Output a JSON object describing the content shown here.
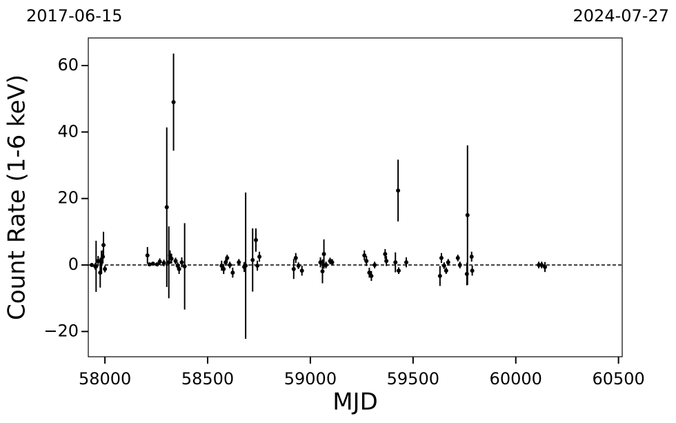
{
  "chart_data": {
    "type": "scatter",
    "x_label": "MJD",
    "y_label": "Count Rate (1-6 keV)",
    "color": "#000000",
    "xlim": [
      57919,
      60518
    ],
    "ylim": [
      -27.6,
      68.3
    ],
    "xticks": [
      58000,
      58500,
      59000,
      59500,
      60000,
      60500
    ],
    "yticks": [
      {
        "value": -20,
        "label": "−20"
      },
      0,
      20,
      40,
      60
    ],
    "x2ticks": [
      {
        "value": 57919,
        "label": "2017-06-15"
      },
      {
        "value": 60518,
        "label": "2024-07-27"
      }
    ],
    "hline": 0,
    "x": [
      57936,
      57953,
      57957,
      57967,
      57977,
      57983,
      57990,
      57993,
      58000,
      58207,
      58217,
      58234,
      58254,
      58267,
      58287,
      58301,
      58311,
      58317,
      58324,
      58334,
      58344,
      58354,
      58361,
      58374,
      58388,
      58568,
      58578,
      58588,
      58595,
      58608,
      58622,
      58652,
      58678,
      58685,
      58719,
      58735,
      58742,
      58752,
      58919,
      58929,
      58942,
      58959,
      59049,
      59059,
      59066,
      59076,
      59096,
      59106,
      59263,
      59273,
      59287,
      59297,
      59313,
      59364,
      59370,
      59414,
      59427,
      59430,
      59467,
      59631,
      59638,
      59651,
      59661,
      59671,
      59718,
      59728,
      59762,
      59765,
      59785,
      59788,
      60112,
      60126,
      60142
    ],
    "values": [
      0,
      -0.4,
      -0.4,
      1.2,
      -2.3,
      0.8,
      2.5,
      6,
      -1.2,
      2.9,
      0.2,
      0.4,
      0.2,
      1,
      0.6,
      17.4,
      0.8,
      2.9,
      1.9,
      49,
      1.2,
      -0.2,
      -1.2,
      0.8,
      -0.4,
      -0.2,
      -1.2,
      0.8,
      2.1,
      0,
      -2.3,
      0.8,
      -0.6,
      -0.2,
      1.5,
      7.5,
      -0.2,
      2.5,
      -1.2,
      2.1,
      -0.2,
      -1.7,
      0.8,
      -1.9,
      3.3,
      0,
      1.2,
      0.8,
      2.9,
      1.2,
      -2.3,
      -3.3,
      0,
      3.3,
      1.2,
      0.8,
      22.4,
      -1.7,
      0.8,
      -3.3,
      2.1,
      -0.2,
      -1.7,
      0.8,
      2.1,
      0,
      -2.7,
      15,
      2.5,
      -1.7,
      0,
      0,
      -0.6
    ],
    "errors": [
      0.5,
      1,
      7.7,
      1.5,
      4.5,
      3.5,
      2,
      4,
      1,
      2.5,
      0.5,
      0.5,
      0.5,
      1,
      1,
      24,
      10.8,
      1.5,
      1.5,
      14.6,
      1,
      1,
      1.5,
      1.5,
      13,
      1.5,
      1.5,
      1,
      1,
      1,
      1.5,
      1,
      1.5,
      22,
      9.5,
      3.5,
      1.5,
      1.5,
      3,
      1.5,
      1,
      1.5,
      1.5,
      3.6,
      4.4,
      1,
      1,
      1,
      1.5,
      1.5,
      1.5,
      1.5,
      1,
      1.5,
      1.5,
      3,
      9.3,
      1,
      1.5,
      3,
      1.5,
      1,
      1,
      1,
      1,
      1,
      3.4,
      21,
      1.5,
      1.5,
      1,
      1,
      1.5
    ]
  }
}
